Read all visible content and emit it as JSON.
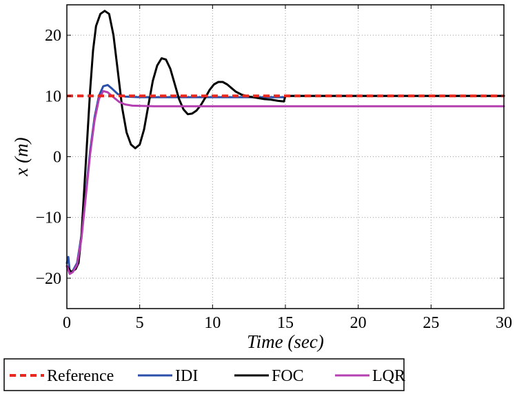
{
  "chart_data": {
    "type": "line",
    "xlabel": "Time (sec)",
    "ylabel": "x (m)",
    "xlim": [
      0,
      30
    ],
    "ylim": [
      -25,
      25
    ],
    "xticks": [
      0,
      5,
      10,
      15,
      20,
      25,
      30
    ],
    "yticks": [
      -20,
      -10,
      0,
      10,
      20
    ],
    "ytick_labels": [
      "−20",
      "−10",
      "0",
      "10",
      "20"
    ],
    "grid": true,
    "legend_position": "bottom-outside",
    "series": [
      {
        "name": "Reference",
        "color": "#e8271f",
        "style": "dashed",
        "points": [
          [
            0,
            10
          ],
          [
            30,
            10
          ]
        ]
      },
      {
        "name": "IDI",
        "color": "#2a4fa8",
        "style": "solid",
        "points": [
          [
            0,
            -17.5
          ],
          [
            0.1,
            -16.5
          ],
          [
            0.2,
            -19
          ],
          [
            0.4,
            -18.8
          ],
          [
            0.7,
            -17.5
          ],
          [
            1.0,
            -13
          ],
          [
            1.3,
            -6
          ],
          [
            1.6,
            1
          ],
          [
            1.9,
            6.5
          ],
          [
            2.2,
            10
          ],
          [
            2.5,
            11.6
          ],
          [
            2.8,
            11.8
          ],
          [
            3.1,
            11.2
          ],
          [
            3.5,
            10.3
          ],
          [
            4.0,
            9.9
          ],
          [
            5,
            9.8
          ],
          [
            10,
            9.8
          ],
          [
            14.95,
            9.8
          ],
          [
            15.0,
            10
          ],
          [
            30,
            10
          ]
        ]
      },
      {
        "name": "FOC",
        "color": "#000000",
        "style": "solid",
        "points": [
          [
            0,
            -18
          ],
          [
            0.3,
            -19
          ],
          [
            0.6,
            -18.5
          ],
          [
            0.8,
            -17.5
          ],
          [
            1.0,
            -13
          ],
          [
            1.2,
            -5
          ],
          [
            1.4,
            3
          ],
          [
            1.6,
            11
          ],
          [
            1.8,
            17.5
          ],
          [
            2.0,
            21.5
          ],
          [
            2.3,
            23.5
          ],
          [
            2.6,
            24
          ],
          [
            2.9,
            23.5
          ],
          [
            3.2,
            20
          ],
          [
            3.5,
            14
          ],
          [
            3.8,
            8
          ],
          [
            4.1,
            4
          ],
          [
            4.4,
            2
          ],
          [
            4.7,
            1.4
          ],
          [
            5.0,
            2
          ],
          [
            5.3,
            4.5
          ],
          [
            5.6,
            8.5
          ],
          [
            5.9,
            12.5
          ],
          [
            6.2,
            15
          ],
          [
            6.5,
            16.2
          ],
          [
            6.8,
            16
          ],
          [
            7.1,
            14.5
          ],
          [
            7.4,
            12
          ],
          [
            7.7,
            9.5
          ],
          [
            8.0,
            7.8
          ],
          [
            8.3,
            7
          ],
          [
            8.6,
            7.1
          ],
          [
            8.9,
            7.6
          ],
          [
            9.2,
            8.5
          ],
          [
            9.5,
            9.7
          ],
          [
            9.8,
            11
          ],
          [
            10.1,
            11.9
          ],
          [
            10.4,
            12.3
          ],
          [
            10.7,
            12.3
          ],
          [
            11.0,
            11.9
          ],
          [
            11.3,
            11.3
          ],
          [
            11.6,
            10.7
          ],
          [
            12.0,
            10.2
          ],
          [
            12.5,
            9.9
          ],
          [
            13,
            9.7
          ],
          [
            13.5,
            9.5
          ],
          [
            14,
            9.4
          ],
          [
            14.5,
            9.2
          ],
          [
            14.9,
            9.1
          ],
          [
            15.0,
            10
          ],
          [
            30,
            10
          ]
        ]
      },
      {
        "name": "LQR",
        "color": "#b43fb0",
        "style": "solid",
        "points": [
          [
            0,
            -18
          ],
          [
            0.2,
            -19.3
          ],
          [
            0.4,
            -19
          ],
          [
            0.7,
            -17.8
          ],
          [
            1.0,
            -13.5
          ],
          [
            1.3,
            -6.5
          ],
          [
            1.6,
            0.5
          ],
          [
            1.9,
            6
          ],
          [
            2.2,
            9.5
          ],
          [
            2.5,
            10.8
          ],
          [
            2.8,
            10.6
          ],
          [
            3.2,
            9.8
          ],
          [
            3.6,
            9
          ],
          [
            4.0,
            8.6
          ],
          [
            4.5,
            8.4
          ],
          [
            6,
            8.3
          ],
          [
            30,
            8.3
          ]
        ]
      }
    ]
  }
}
